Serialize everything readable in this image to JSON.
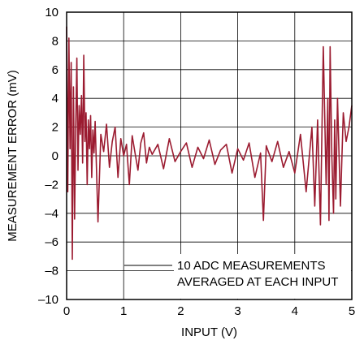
{
  "chart_data": {
    "type": "line",
    "title": "",
    "xlabel": "INPUT (V)",
    "ylabel": "MEASUREMENT ERROR (mV)",
    "xlim": [
      0,
      5
    ],
    "ylim": [
      -10,
      10
    ],
    "grid": true,
    "x_ticks": [
      0,
      1,
      2,
      3,
      4,
      5
    ],
    "x_tick_labels": [
      "0",
      "1",
      "2",
      "3",
      "4",
      "5"
    ],
    "y_ticks": [
      10,
      8,
      6,
      4,
      2,
      0,
      -2,
      -4,
      -6,
      -8,
      -10
    ],
    "y_tick_labels": [
      "10",
      "8",
      "6",
      "4",
      "2",
      "0",
      "–2",
      "–4",
      "–6",
      "–8",
      "–10"
    ],
    "annotation": [
      "10 ADC MEASUREMENTS",
      "AVERAGED AT EACH INPUT"
    ],
    "series_color": "#9b1b30",
    "series": [
      {
        "x": [
          0.0,
          0.02,
          0.04,
          0.06,
          0.08,
          0.1,
          0.12,
          0.14,
          0.16,
          0.18,
          0.2,
          0.22,
          0.24,
          0.26,
          0.28,
          0.3,
          0.32,
          0.34,
          0.36,
          0.38,
          0.4,
          0.42,
          0.44,
          0.46,
          0.48,
          0.5,
          0.55,
          0.6,
          0.65,
          0.7,
          0.75,
          0.8,
          0.85,
          0.9,
          0.95,
          1.0,
          1.05,
          1.1,
          1.15,
          1.2,
          1.25,
          1.3,
          1.35,
          1.4,
          1.45,
          1.5,
          1.6,
          1.7,
          1.8,
          1.9,
          2.0,
          2.1,
          2.2,
          2.3,
          2.4,
          2.5,
          2.6,
          2.7,
          2.8,
          2.9,
          3.0,
          3.1,
          3.2,
          3.3,
          3.4,
          3.45,
          3.5,
          3.6,
          3.7,
          3.8,
          3.9,
          4.0,
          4.1,
          4.2,
          4.3,
          4.35,
          4.4,
          4.45,
          4.5,
          4.55,
          4.58,
          4.6,
          4.62,
          4.65,
          4.68,
          4.7,
          4.72,
          4.75,
          4.8,
          4.85,
          4.9,
          4.95,
          5.0
        ],
        "y": [
          9.0,
          -2.5,
          8.2,
          0.5,
          6.5,
          -7.2,
          4.8,
          -4.4,
          2.0,
          6.8,
          -1.0,
          3.5,
          1.5,
          4.2,
          -0.5,
          7.0,
          1.0,
          3.0,
          -2.0,
          2.5,
          0.5,
          2.8,
          -1.5,
          1.8,
          0.2,
          2.4,
          -4.6,
          1.5,
          0.3,
          2.2,
          -0.8,
          1.0,
          2.0,
          -1.5,
          1.2,
          0.0,
          0.8,
          -2.0,
          1.4,
          0.2,
          -1.0,
          0.9,
          1.6,
          -0.5,
          0.6,
          0.1,
          0.8,
          -0.9,
          1.2,
          -0.4,
          0.3,
          0.9,
          -0.8,
          0.6,
          -0.2,
          1.1,
          -0.6,
          0.4,
          0.8,
          -1.2,
          0.5,
          -0.3,
          0.9,
          -1.5,
          0.2,
          -4.5,
          0.7,
          -0.4,
          1.0,
          -0.8,
          0.3,
          -1.2,
          1.5,
          -2.5,
          2.0,
          -3.5,
          2.5,
          -4.8,
          7.6,
          -2.0,
          4.0,
          -4.5,
          7.6,
          0.0,
          -4.0,
          2.5,
          -3.0,
          4.0,
          -3.5,
          3.0,
          1.0,
          2.0,
          3.5
        ]
      }
    ]
  }
}
